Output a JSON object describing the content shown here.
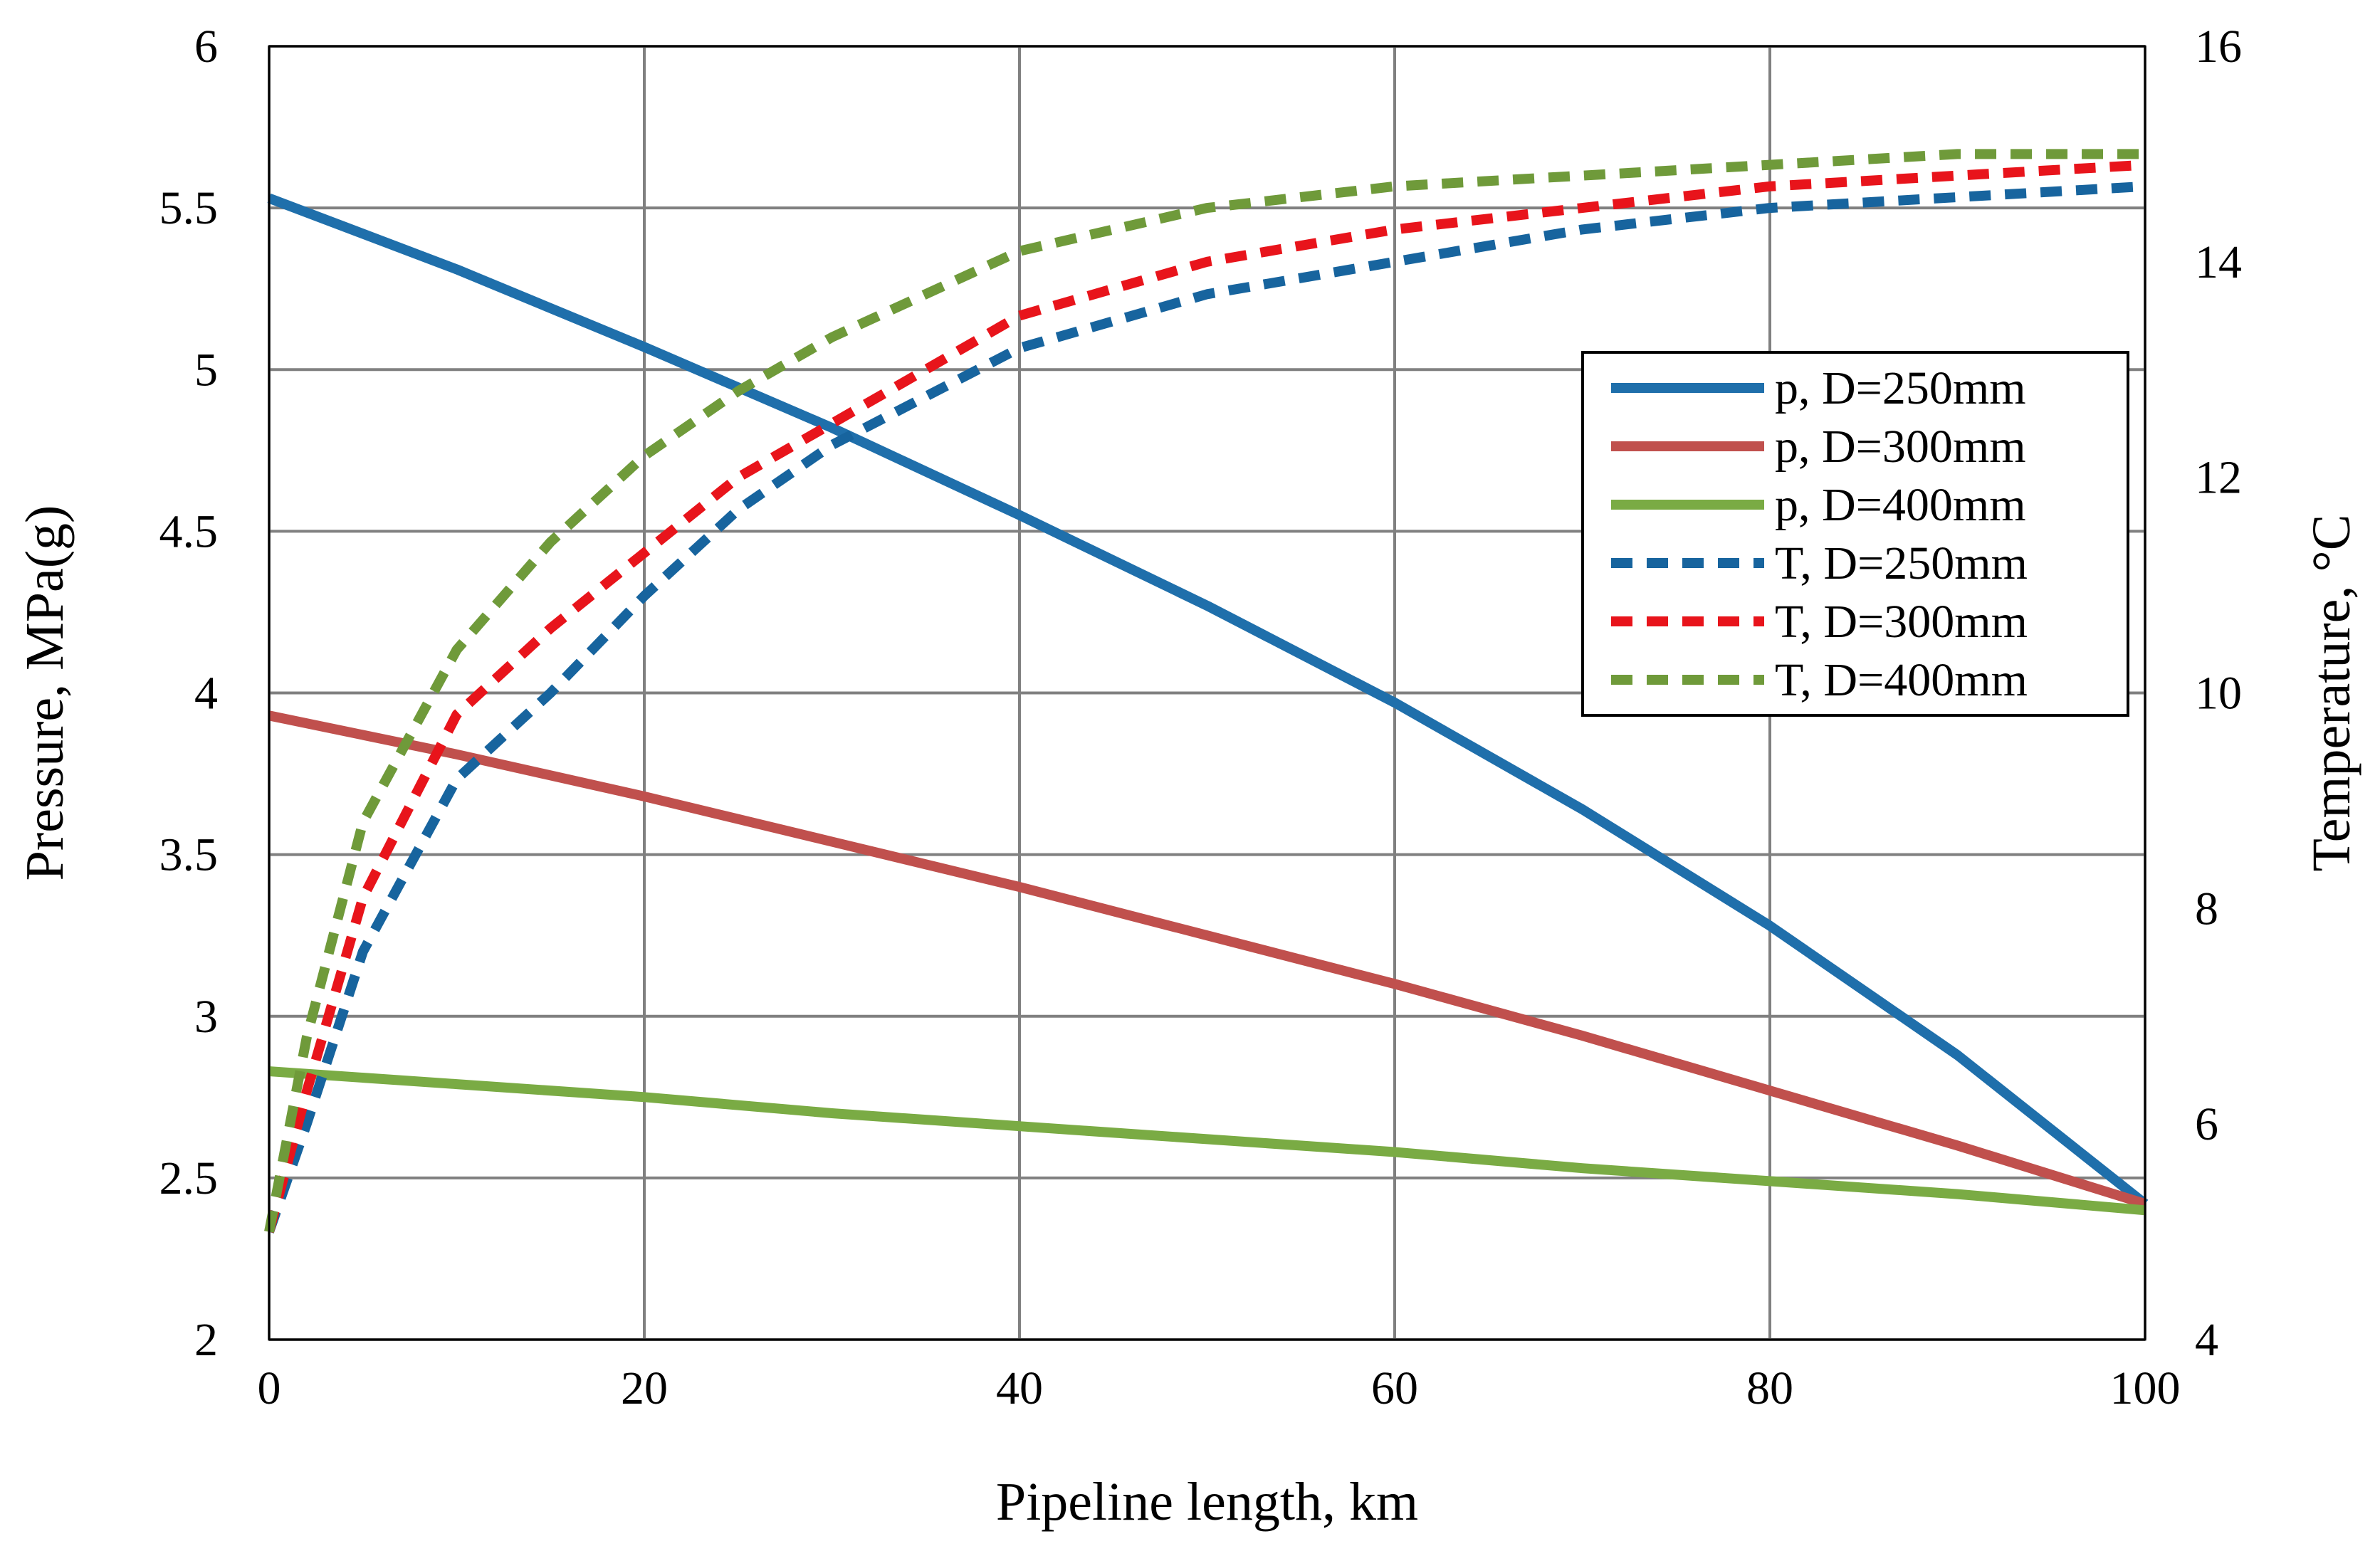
{
  "chart_data": {
    "type": "line",
    "xlabel": "Pipeline length, km",
    "ylabel": "Pressure, MPa(g)",
    "y2label": "Temperature, °C",
    "xlim": [
      0,
      100
    ],
    "ylim": [
      2,
      6
    ],
    "y2lim": [
      4,
      16
    ],
    "x_ticks": [
      0,
      20,
      40,
      60,
      80,
      100
    ],
    "y_ticks": [
      2,
      2.5,
      3,
      3.5,
      4,
      4.5,
      5,
      5.5,
      6
    ],
    "y2_ticks": [
      4,
      6,
      8,
      10,
      12,
      14,
      16
    ],
    "grid": true,
    "legend_position": "right-upper",
    "series": [
      {
        "name": "p, D=250mm",
        "axis": "left",
        "style": "solid",
        "color": "#1f6fab",
        "x": [
          0,
          10,
          20,
          30,
          40,
          50,
          60,
          70,
          80,
          90,
          100
        ],
        "values": [
          5.53,
          5.31,
          5.07,
          4.82,
          4.55,
          4.27,
          3.97,
          3.64,
          3.28,
          2.88,
          2.42
        ]
      },
      {
        "name": "p, D=300mm",
        "axis": "left",
        "style": "solid",
        "color": "#c0504d",
        "x": [
          0,
          10,
          20,
          30,
          40,
          50,
          60,
          70,
          80,
          90,
          100
        ],
        "values": [
          3.93,
          3.81,
          3.68,
          3.54,
          3.4,
          3.25,
          3.1,
          2.94,
          2.77,
          2.6,
          2.42
        ]
      },
      {
        "name": "p, D=400mm",
        "axis": "left",
        "style": "solid",
        "color": "#7aab44",
        "x": [
          0,
          10,
          20,
          30,
          40,
          50,
          60,
          70,
          80,
          90,
          100
        ],
        "values": [
          2.83,
          2.79,
          2.75,
          2.7,
          2.66,
          2.62,
          2.58,
          2.53,
          2.49,
          2.45,
          2.4
        ]
      },
      {
        "name": "T, D=250mm",
        "axis": "right",
        "style": "dashed",
        "color": "#17649e",
        "x": [
          0,
          2,
          5,
          10,
          15,
          20,
          25,
          30,
          40,
          50,
          60,
          70,
          80,
          90,
          100
        ],
        "values": [
          5.0,
          6.0,
          7.6,
          9.2,
          10.0,
          10.9,
          11.7,
          12.3,
          13.2,
          13.7,
          14.0,
          14.3,
          14.5,
          14.6,
          14.7
        ]
      },
      {
        "name": "T, D=300mm",
        "axis": "right",
        "style": "dashed",
        "color": "#e8141b",
        "x": [
          0,
          2,
          5,
          10,
          15,
          20,
          25,
          30,
          40,
          50,
          60,
          70,
          80,
          90,
          100
        ],
        "values": [
          5.0,
          6.3,
          8.1,
          9.8,
          10.6,
          11.3,
          12.0,
          12.5,
          13.5,
          14.0,
          14.3,
          14.5,
          14.7,
          14.8,
          14.9
        ]
      },
      {
        "name": "T, D=400mm",
        "axis": "right",
        "style": "dashed",
        "color": "#6f9a3a",
        "x": [
          0,
          2,
          5,
          10,
          15,
          20,
          25,
          30,
          40,
          50,
          60,
          70,
          80,
          90,
          100
        ],
        "values": [
          5.0,
          6.8,
          8.8,
          10.4,
          11.4,
          12.2,
          12.8,
          13.3,
          14.1,
          14.5,
          14.7,
          14.8,
          14.9,
          15.0,
          15.0
        ]
      }
    ]
  }
}
